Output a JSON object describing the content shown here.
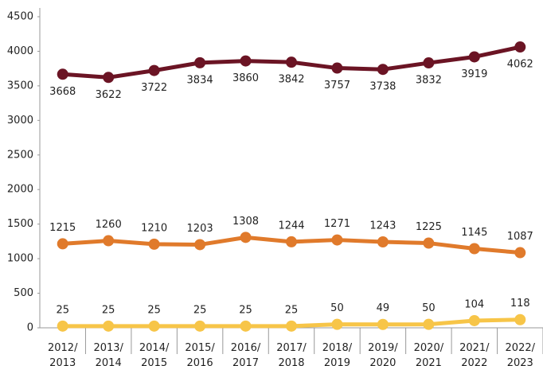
{
  "chart_data": {
    "type": "line",
    "categories": [
      "2012/2013",
      "2013/2014",
      "2014/2015",
      "2015/2016",
      "2016/2017",
      "2017/2018",
      "2018/2019",
      "2019/2020",
      "2020/2021",
      "2021/2022",
      "2022/2023"
    ],
    "series": [
      {
        "color": "#6b1424",
        "values": [
          3668,
          3622,
          3722,
          3834,
          3860,
          3842,
          3757,
          3738,
          3832,
          3919,
          4062
        ]
      },
      {
        "color": "#e07a2b",
        "values": [
          1215,
          1260,
          1210,
          1203,
          1308,
          1244,
          1271,
          1243,
          1225,
          1145,
          1087
        ]
      },
      {
        "color": "#f7c548",
        "values": [
          25,
          25,
          25,
          25,
          25,
          25,
          50,
          49,
          50,
          104,
          118
        ]
      }
    ],
    "ylim": [
      0,
      4500
    ],
    "yticks": [
      0,
      500,
      1000,
      1500,
      2000,
      2500,
      3000,
      3500,
      4000,
      4500
    ]
  }
}
